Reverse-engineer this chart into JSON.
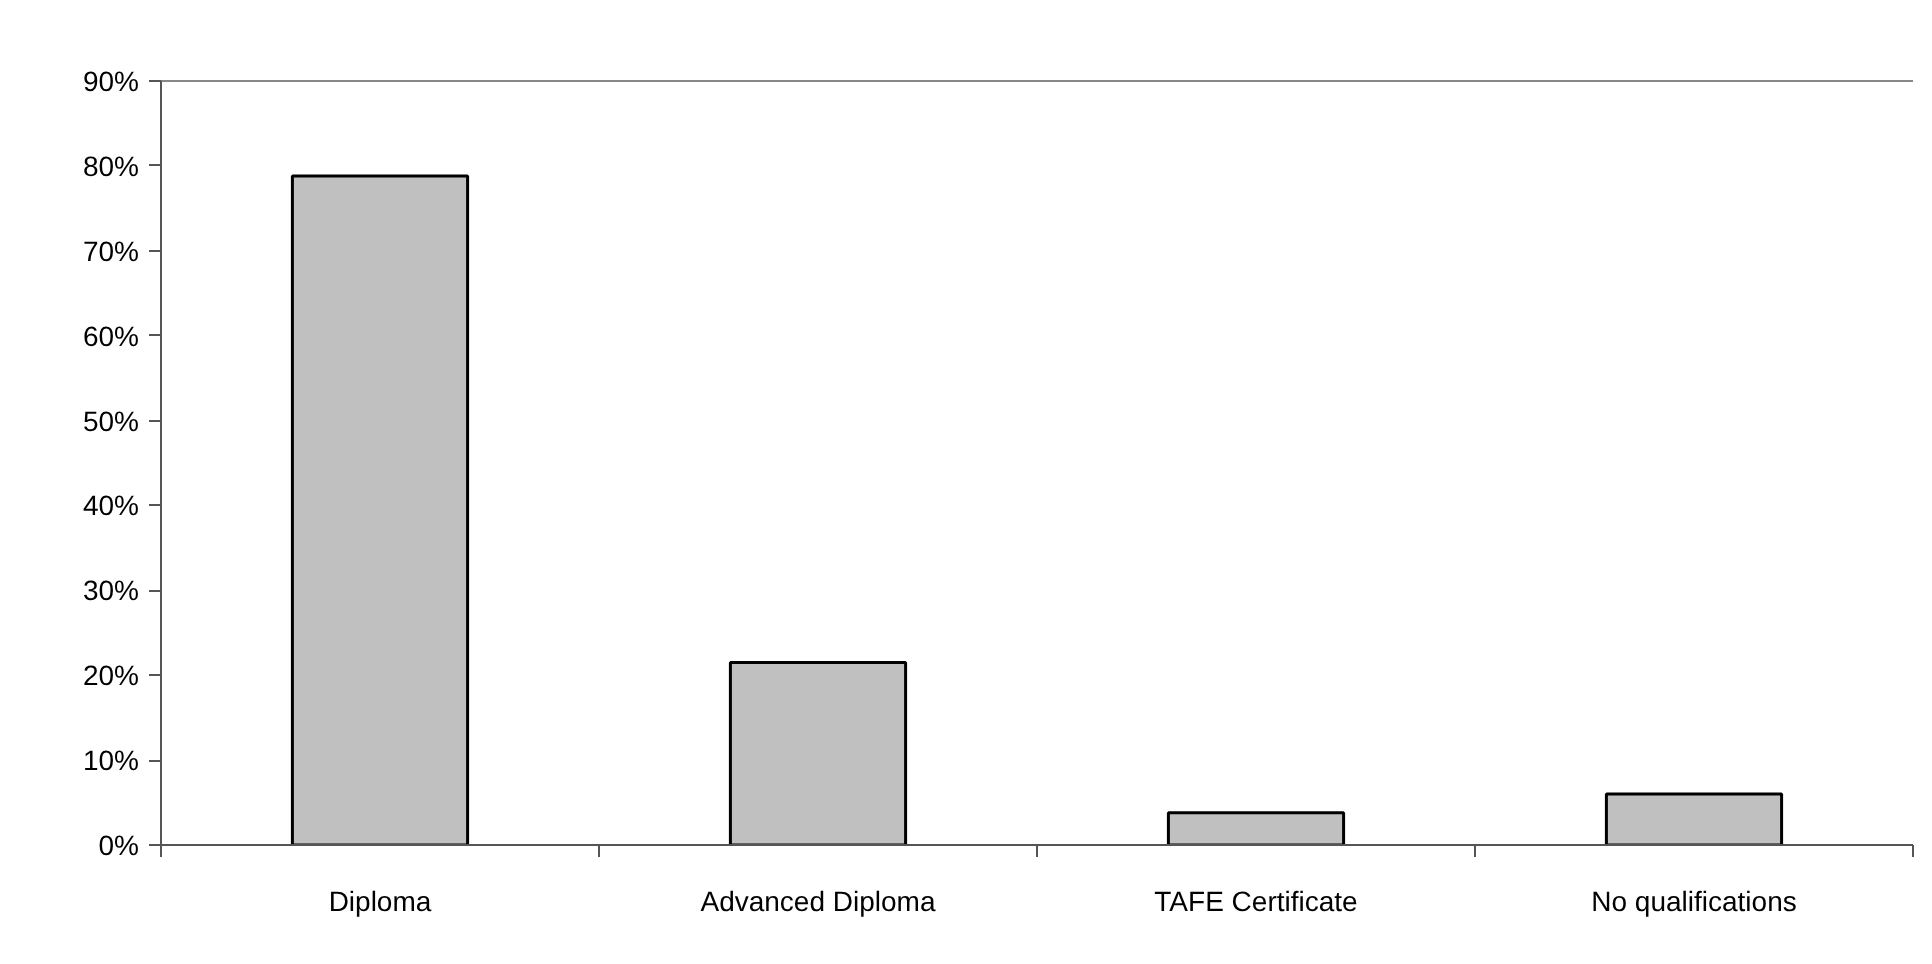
{
  "chart_data": {
    "type": "bar",
    "categories": [
      "Diploma",
      "Advanced Diploma",
      "TAFE Certificate",
      "No qualifications"
    ],
    "values": [
      78.8,
      21.5,
      3.8,
      6.0
    ],
    "color": "#c0c0c0",
    "ylim": [
      0,
      90
    ],
    "yticks": [
      {
        "value": 0,
        "label": "0%"
      },
      {
        "value": 10,
        "label": "10%"
      },
      {
        "value": 20,
        "label": "20%"
      },
      {
        "value": 30,
        "label": "30%"
      },
      {
        "value": 40,
        "label": "40%"
      },
      {
        "value": 50,
        "label": "50%"
      },
      {
        "value": 60,
        "label": "60%"
      },
      {
        "value": 70,
        "label": "70%"
      },
      {
        "value": 80,
        "label": "80%"
      },
      {
        "value": 90,
        "label": "90%"
      }
    ],
    "grid": false
  }
}
